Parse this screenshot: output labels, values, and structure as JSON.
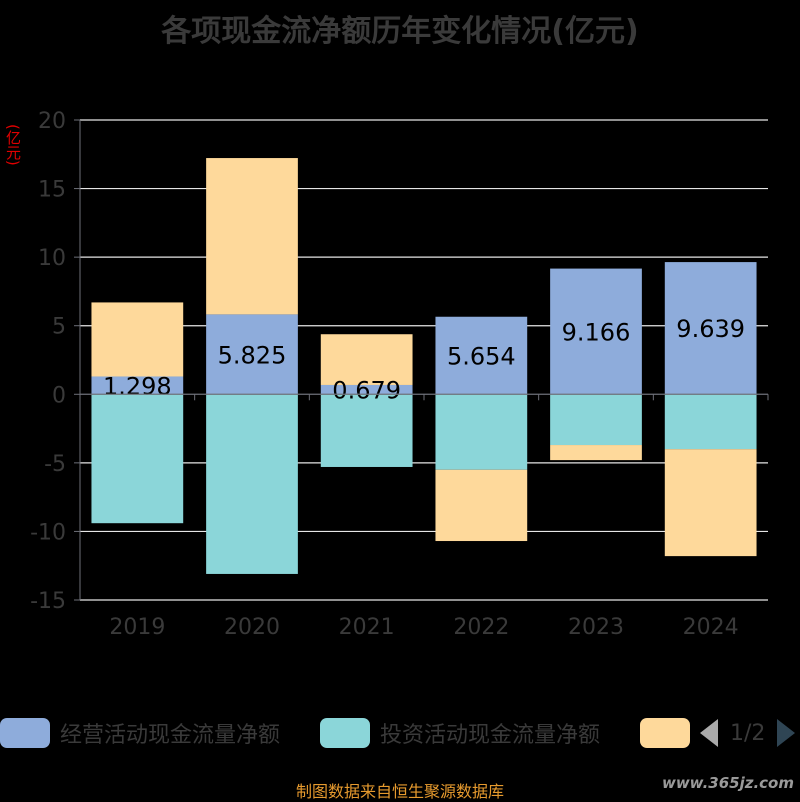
{
  "title": "各项现金流净额历年变化情况(亿元)",
  "unit_label": "(亿元)",
  "source": "制图数据来自恒生聚源数据库",
  "watermark": "www.365jz.com",
  "legend": {
    "items": [
      {
        "label": "经营活动现金流量净额",
        "color": "#8eacdb"
      },
      {
        "label": "投资活动现金流量净额",
        "color": "#8bd6d9"
      },
      {
        "label": "",
        "color": "#fed99b"
      }
    ],
    "pager": "1/2"
  },
  "chart_data": {
    "type": "bar",
    "stacked": true,
    "categories": [
      "2019",
      "2020",
      "2021",
      "2022",
      "2023",
      "2024"
    ],
    "ylim": [
      -15,
      20
    ],
    "yticks": [
      -15,
      -10,
      -5,
      0,
      5,
      10,
      15,
      20
    ],
    "series": [
      {
        "name": "经营活动现金流量净额",
        "color": "#8eacdb",
        "values": [
          1.298,
          5.825,
          0.679,
          5.654,
          9.166,
          9.639
        ],
        "labels": [
          "1.298",
          "5.825",
          "0.679",
          "5.654",
          "9.166",
          "9.639"
        ]
      },
      {
        "name": "投资活动现金流量净额",
        "color": "#8bd6d9",
        "values": [
          -9.4,
          -13.1,
          -5.3,
          -5.5,
          -3.7,
          -4.0
        ]
      },
      {
        "name": "",
        "color": "#fed99b",
        "values": [
          5.4,
          11.4,
          3.7,
          -5.2,
          -1.1,
          -7.8
        ]
      }
    ]
  }
}
